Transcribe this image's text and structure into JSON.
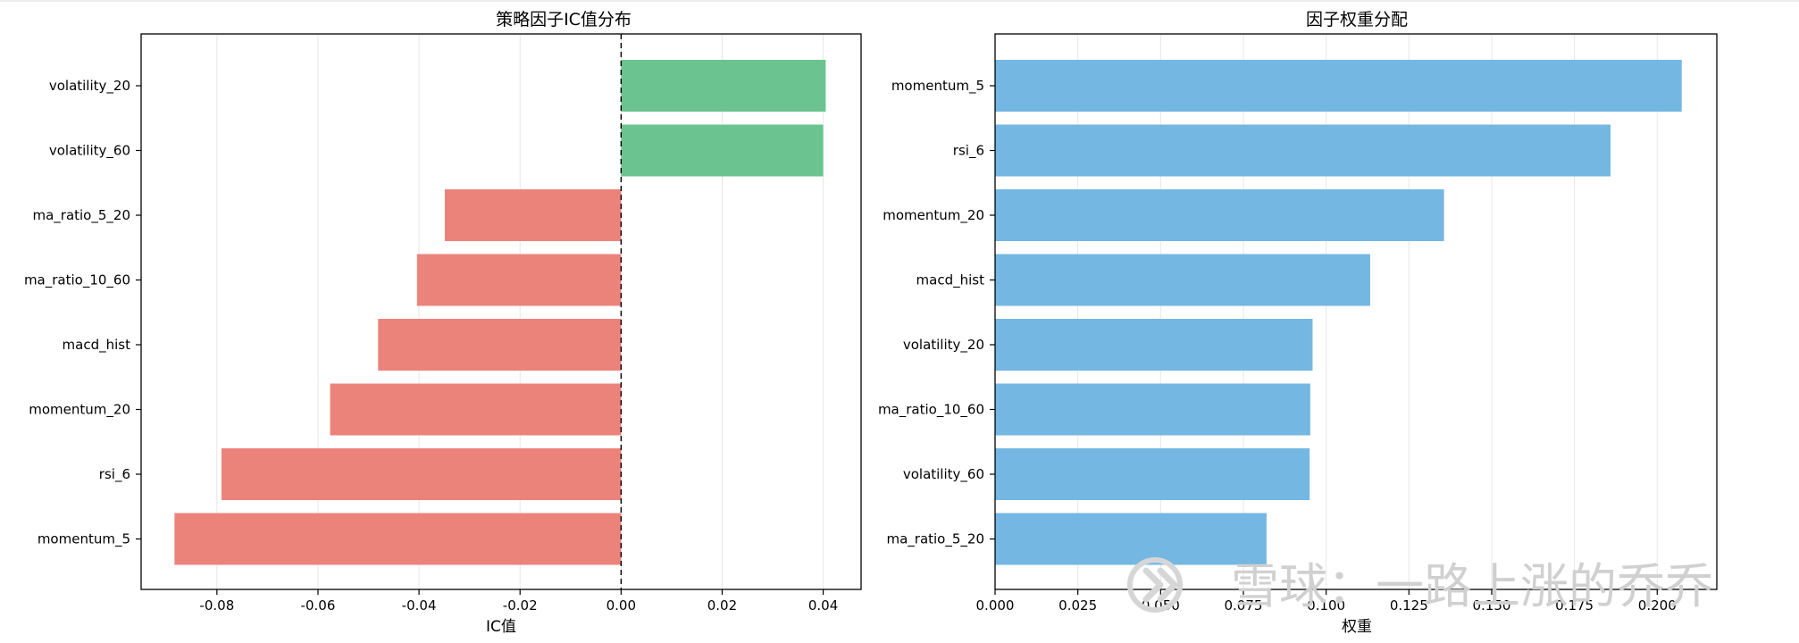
{
  "chart_data": [
    {
      "type": "bar",
      "orientation": "horizontal",
      "title": "策略因子IC值分布",
      "xlabel": "IC值",
      "ylabel": "",
      "categories": [
        "volatility_20",
        "volatility_60",
        "ma_ratio_5_20",
        "ma_ratio_10_60",
        "macd_hist",
        "momentum_20",
        "rsi_6",
        "momentum_5"
      ],
      "values": [
        0.0405,
        0.04,
        -0.0349,
        -0.0404,
        -0.0481,
        -0.0576,
        -0.0791,
        -0.0884
      ],
      "xlim": [
        -0.095,
        0.0475
      ],
      "xticks": [
        -0.08,
        -0.06,
        -0.04,
        -0.02,
        0.0,
        0.02,
        0.04
      ],
      "xtick_labels": [
        "-0.08",
        "-0.06",
        "-0.04",
        "-0.02",
        "0.00",
        "0.02",
        "0.04"
      ],
      "grid": "vertical",
      "zero_line": "dashed",
      "colors": {
        "positive": "#6bc48f",
        "negative": "#ec837b"
      }
    },
    {
      "type": "bar",
      "orientation": "horizontal",
      "title": "因子权重分配",
      "xlabel": "权重",
      "ylabel": "",
      "categories": [
        "momentum_5",
        "rsi_6",
        "momentum_20",
        "macd_hist",
        "volatility_20",
        "ma_ratio_10_60",
        "volatility_60",
        "ma_ratio_5_20"
      ],
      "values": [
        0.2074,
        0.1859,
        0.1356,
        0.1133,
        0.0959,
        0.0952,
        0.095,
        0.082
      ],
      "xlim": [
        0.0,
        0.218
      ],
      "xticks": [
        0.0,
        0.025,
        0.05,
        0.075,
        0.1,
        0.125,
        0.15,
        0.175,
        0.2
      ],
      "xtick_labels": [
        "0.000",
        "0.025",
        "0.050",
        "0.075",
        "0.100",
        "0.125",
        "0.150",
        "0.175",
        "0.200"
      ],
      "grid": "vertical",
      "colors": {
        "bar": "#74b7e2"
      }
    }
  ],
  "watermark": {
    "text": "雪球：一路上涨的乔乔",
    "icon": "xueqiu-logo-icon"
  }
}
